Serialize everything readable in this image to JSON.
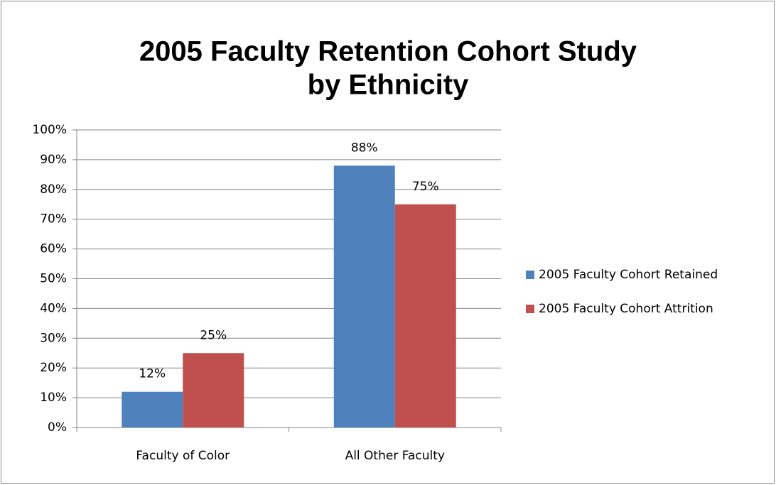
{
  "chart_data": {
    "type": "bar",
    "title": [
      "2005 Faculty Retention Cohort Study",
      "by Ethnicity"
    ],
    "categories": [
      "Faculty of Color",
      "All Other Faculty"
    ],
    "series": [
      {
        "name": "2005 Faculty Cohort Retained",
        "color": "#4f81bd",
        "values": [
          12,
          88
        ],
        "value_labels": [
          "12%",
          "88%"
        ]
      },
      {
        "name": "2005 Faculty Cohort Attrition",
        "color": "#c0504d",
        "values": [
          25,
          75
        ],
        "value_labels": [
          "25%",
          "75%"
        ]
      }
    ],
    "ylim": [
      0,
      100
    ],
    "yticks": [
      {
        "value": 0,
        "label": "0%"
      },
      {
        "value": 10,
        "label": "10%"
      },
      {
        "value": 20,
        "label": "20%"
      },
      {
        "value": 30,
        "label": "30%"
      },
      {
        "value": 40,
        "label": "40%"
      },
      {
        "value": 50,
        "label": "50%"
      },
      {
        "value": 60,
        "label": "60%"
      },
      {
        "value": 70,
        "label": "70%"
      },
      {
        "value": 80,
        "label": "80%"
      },
      {
        "value": 90,
        "label": "90%"
      },
      {
        "value": 100,
        "label": "100%"
      }
    ],
    "grid": true,
    "legend": "right"
  }
}
